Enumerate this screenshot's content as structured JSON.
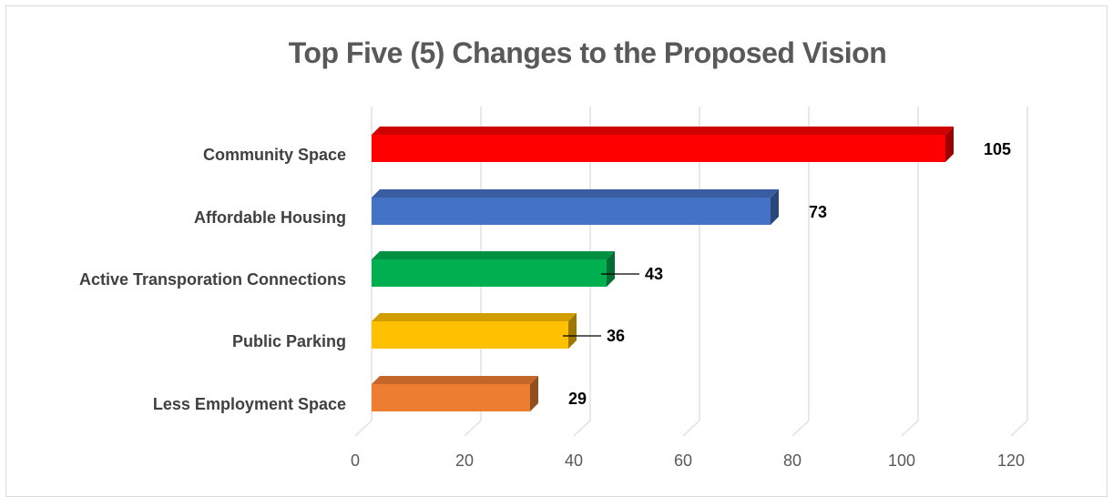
{
  "chart_data": {
    "type": "bar",
    "orientation": "horizontal",
    "title": "Top Five (5) Changes to the Proposed Vision",
    "categories": [
      "Community Space",
      "Affordable Housing",
      "Active Transporation Connections",
      "Public Parking",
      "Less Employment Space"
    ],
    "values": [
      105,
      73,
      43,
      36,
      29
    ],
    "value_labels": [
      "105",
      "73",
      "43",
      "36",
      "29"
    ],
    "colors": [
      "#ff0000",
      "#4472c4",
      "#00b050",
      "#ffc000",
      "#ed7d31"
    ],
    "xlim": [
      0,
      120
    ],
    "xticks": [
      "0",
      "20",
      "40",
      "60",
      "80",
      "100",
      "120"
    ],
    "grid": true,
    "legend": "none",
    "style": "3d"
  }
}
